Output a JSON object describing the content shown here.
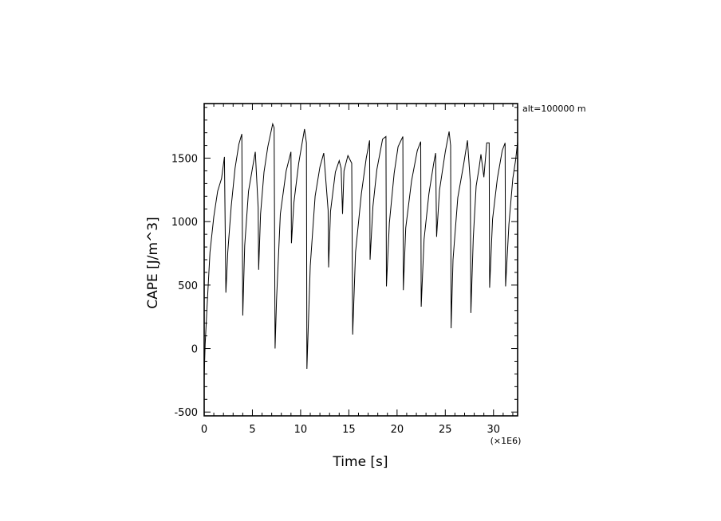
{
  "chart_data": {
    "type": "line",
    "title": "",
    "xlabel": "Time [s]",
    "ylabel": "CAPE [J/m^3]",
    "x_multiplier_label": "(×1E6)",
    "annotation": "alt=100000 m",
    "xlim": [
      0,
      32.5
    ],
    "ylim": [
      -530,
      1930
    ],
    "x_ticks": [
      0,
      5,
      10,
      15,
      20,
      25,
      30
    ],
    "y_ticks": [
      -500,
      0,
      500,
      1000,
      1500
    ],
    "grid": false,
    "line_color": "#000000",
    "series": [
      {
        "name": "",
        "x": [
          0,
          0.1,
          0.3,
          0.6,
          1.0,
          1.4,
          1.8,
          2.1,
          2.25,
          2.45,
          2.8,
          3.2,
          3.6,
          3.9,
          4.0,
          4.2,
          4.6,
          5.0,
          5.3,
          5.6,
          5.65,
          5.85,
          6.2,
          6.6,
          7.1,
          7.25,
          7.35,
          7.5,
          7.9,
          8.5,
          9.0,
          9.05,
          9.3,
          9.8,
          10.4,
          10.6,
          10.65,
          11.0,
          11.5,
          12.0,
          12.4,
          12.85,
          12.9,
          13.1,
          13.6,
          14.0,
          14.2,
          14.35,
          14.5,
          14.9,
          15.3,
          15.4,
          15.7,
          16.3,
          16.8,
          17.15,
          17.2,
          17.5,
          17.9,
          18.5,
          18.85,
          18.9,
          19.2,
          19.7,
          20.1,
          20.6,
          20.65,
          20.9,
          21.5,
          22.1,
          22.45,
          22.5,
          22.8,
          23.3,
          23.8,
          24.0,
          24.1,
          24.4,
          25.0,
          25.4,
          25.55,
          25.6,
          25.8,
          26.3,
          26.9,
          27.3,
          27.6,
          27.65,
          27.9,
          28.2,
          28.5,
          28.7,
          29.0,
          29.3,
          29.55,
          29.6,
          29.9,
          30.4,
          30.9,
          31.2,
          31.25,
          31.6,
          32.0,
          32.3,
          32.5
        ],
        "values": [
          -230,
          30,
          330,
          760,
          1040,
          1240,
          1340,
          1510,
          440,
          760,
          1120,
          1420,
          1610,
          1690,
          260,
          810,
          1240,
          1420,
          1550,
          1110,
          620,
          1060,
          1390,
          1590,
          1770,
          1740,
          0,
          380,
          1060,
          1400,
          1550,
          830,
          1150,
          1460,
          1730,
          1620,
          -160,
          650,
          1200,
          1430,
          1540,
          1090,
          640,
          1080,
          1390,
          1480,
          1420,
          1060,
          1400,
          1520,
          1460,
          110,
          760,
          1220,
          1500,
          1640,
          700,
          1120,
          1410,
          1650,
          1670,
          490,
          990,
          1380,
          1590,
          1670,
          460,
          950,
          1320,
          1560,
          1630,
          330,
          860,
          1220,
          1460,
          1540,
          880,
          1250,
          1550,
          1710,
          1600,
          160,
          700,
          1190,
          1450,
          1640,
          1310,
          280,
          870,
          1280,
          1420,
          1530,
          1350,
          1620,
          1620,
          480,
          1020,
          1340,
          1560,
          1620,
          490,
          980,
          1340,
          1490,
          1630
        ]
      }
    ]
  }
}
